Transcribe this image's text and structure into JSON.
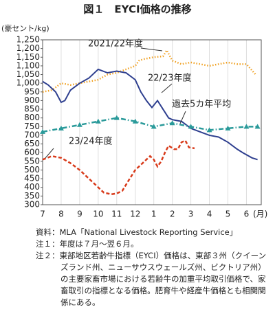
{
  "chart_data": {
    "type": "line",
    "title": "図１　EYCI価格の推移",
    "ylabel": "(豪セント/kg)",
    "xlabel": "(月)",
    "xlim": [
      0,
      11.8
    ],
    "xticks": [
      {
        "value": 0,
        "label": "7"
      },
      {
        "value": 1,
        "label": "8"
      },
      {
        "value": 2,
        "label": "9"
      },
      {
        "value": 3,
        "label": "10"
      },
      {
        "value": 4,
        "label": "11"
      },
      {
        "value": 5,
        "label": "12"
      },
      {
        "value": 6,
        "label": "1"
      },
      {
        "value": 7,
        "label": "2"
      },
      {
        "value": 8,
        "label": "3"
      },
      {
        "value": 9,
        "label": "4"
      },
      {
        "value": 10,
        "label": "5"
      },
      {
        "value": 11,
        "label": "6"
      }
    ],
    "ylim": [
      300,
      1250
    ],
    "yticks": [
      300,
      350,
      400,
      450,
      500,
      550,
      600,
      650,
      700,
      750,
      800,
      850,
      900,
      950,
      {
        "value": 1000,
        "label": "1,000"
      },
      {
        "value": 1050,
        "label": "1,050"
      },
      {
        "value": 1100,
        "label": "1,100"
      },
      {
        "value": 1150,
        "label": "1,150"
      },
      {
        "value": 1200,
        "label": "1,200"
      },
      {
        "value": 1250,
        "label": "1,250"
      }
    ],
    "grid": true,
    "series": [
      {
        "name": "2021/22年度",
        "color": "#f0a020",
        "style": "dotted",
        "x": [
          0,
          0.5,
          1,
          1.5,
          2,
          2.5,
          3,
          3.5,
          4,
          4.5,
          5,
          5.2,
          5.5,
          6,
          6.5,
          6.7,
          7,
          7.5,
          8,
          8.5,
          9,
          9.5,
          10,
          10.5,
          11,
          11.5
        ],
        "values": [
          950,
          960,
          1000,
          990,
          1000,
          1010,
          1020,
          1050,
          1060,
          1080,
          1100,
          1130,
          1140,
          1150,
          1155,
          1190,
          1130,
          1110,
          1120,
          1110,
          1100,
          1110,
          1120,
          1110,
          1110,
          1050
        ]
      },
      {
        "name": "22/23年度",
        "color": "#2e3f8f",
        "style": "solid",
        "x": [
          0,
          0.3,
          0.7,
          1,
          1.2,
          1.5,
          2,
          2.5,
          3,
          3.5,
          4,
          4.5,
          5,
          5.3,
          5.6,
          5.9,
          6.2,
          6.5,
          6.8,
          7,
          7.5,
          8,
          8.5,
          9,
          9.5,
          10,
          10.5,
          10.8,
          11.3,
          11.6
        ],
        "values": [
          1010,
          990,
          950,
          890,
          900,
          960,
          1000,
          1030,
          1080,
          1060,
          1070,
          1060,
          1020,
          950,
          900,
          860,
          900,
          850,
          800,
          790,
          780,
          740,
          720,
          700,
          690,
          660,
          620,
          600,
          570,
          560
        ]
      },
      {
        "name": "過去5カ年平均",
        "color": "#2a9a9a",
        "style": "dashdot",
        "markers": "triangle",
        "x": [
          0,
          1,
          2,
          3,
          4,
          5,
          6,
          7,
          8,
          9,
          10,
          11,
          11.6
        ],
        "values": [
          720,
          740,
          760,
          780,
          800,
          780,
          750,
          770,
          750,
          730,
          740,
          750,
          750
        ]
      },
      {
        "name": "23/24年度",
        "color": "#d83a1a",
        "style": "dashed",
        "x": [
          0,
          0.5,
          1,
          1.5,
          2,
          2.5,
          3,
          3.3,
          3.7,
          4,
          4.3,
          4.7,
          5,
          5.5,
          5.8,
          6,
          6.2,
          6.4,
          6.6,
          6.8,
          7.1,
          7.3,
          7.5,
          7.7,
          7.9,
          8.2
        ],
        "values": [
          560,
          580,
          570,
          540,
          500,
          450,
          400,
          370,
          360,
          365,
          380,
          450,
          500,
          550,
          580,
          560,
          520,
          550,
          600,
          640,
          620,
          620,
          660,
          670,
          630,
          625
        ]
      }
    ]
  },
  "notes": [
    "資料：MLA「National Livestock Reporting Service」",
    "注１：年度は７月～翌６月。",
    "注２：東部地区若齢牛指標（EYCI）価格は、東部３州（クイーンズランド州、ニューサウスウェールズ州、ビクトリア州）の主要家畜市場における若齢牛の加重平均取引価格で、家畜取引の指標となる価格。肥育牛や経産牛価格とも相関関係にある。"
  ]
}
